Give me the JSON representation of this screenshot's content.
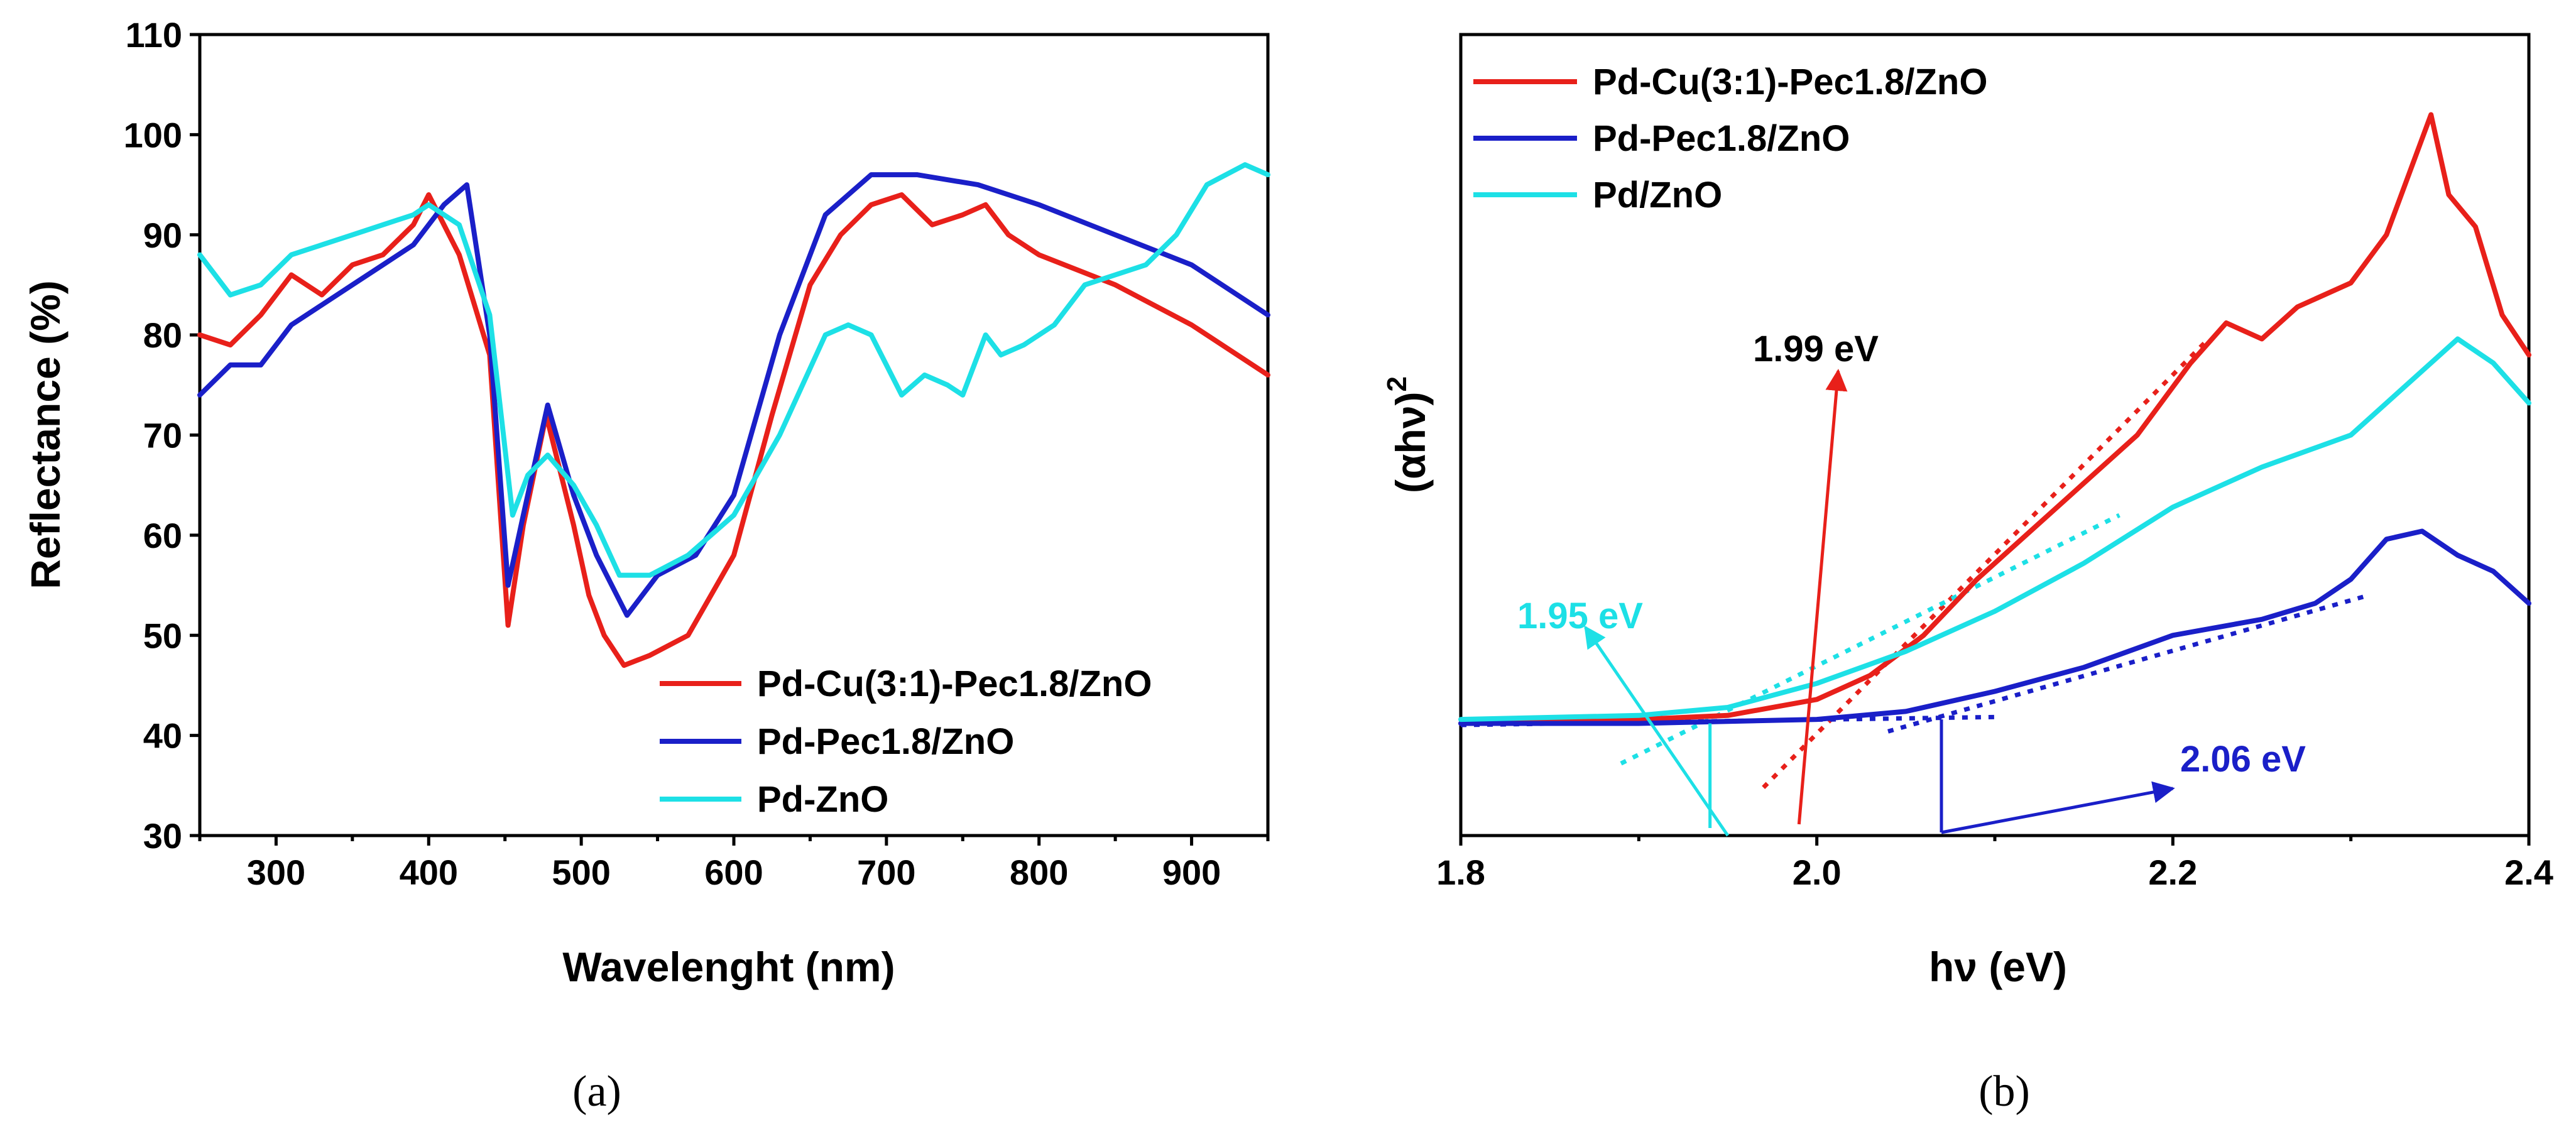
{
  "chart_data": [
    {
      "panel": "(a)",
      "type": "line",
      "title": "",
      "xlabel": "Wavelenght (nm)",
      "ylabel": "Reflectance (%)",
      "xlim": [
        250,
        950
      ],
      "ylim": [
        30,
        110
      ],
      "xticks": [
        300,
        400,
        500,
        600,
        700,
        800,
        900
      ],
      "yticks": [
        30,
        40,
        50,
        60,
        70,
        80,
        90,
        100,
        110
      ],
      "legend_position": "bottom-right",
      "series": [
        {
          "name": "Pd-Cu(3:1)-Pec1.8/ZnO",
          "color": "#e8201a",
          "x": [
            250,
            270,
            290,
            310,
            330,
            350,
            370,
            390,
            400,
            420,
            440,
            452,
            462,
            477,
            495,
            505,
            515,
            528,
            545,
            570,
            600,
            625,
            650,
            670,
            690,
            710,
            730,
            750,
            765,
            780,
            800,
            850,
            900,
            950
          ],
          "y": [
            80,
            79,
            82,
            86,
            84,
            87,
            88,
            91,
            94,
            88,
            78,
            51,
            61,
            72,
            61,
            54,
            50,
            47,
            48,
            50,
            58,
            72,
            85,
            90,
            93,
            94,
            91,
            92,
            93,
            90,
            88,
            85,
            81,
            76
          ]
        },
        {
          "name": "Pd-Pec1.8/ZnO",
          "color": "#1a1fc8",
          "x": [
            250,
            270,
            290,
            310,
            330,
            350,
            370,
            390,
            410,
            425,
            440,
            452,
            462,
            478,
            495,
            510,
            530,
            550,
            575,
            600,
            630,
            660,
            690,
            720,
            760,
            800,
            850,
            900,
            950
          ],
          "y": [
            74,
            77,
            77,
            81,
            83,
            85,
            87,
            89,
            93,
            95,
            80,
            55,
            62,
            73,
            64,
            58,
            52,
            56,
            58,
            64,
            80,
            92,
            96,
            96,
            95,
            93,
            90,
            87,
            82
          ]
        },
        {
          "name": "Pd-ZnO",
          "color": "#1de0e6",
          "x": [
            250,
            270,
            290,
            310,
            330,
            350,
            370,
            390,
            400,
            420,
            440,
            455,
            465,
            478,
            495,
            510,
            525,
            545,
            570,
            600,
            630,
            660,
            675,
            690,
            710,
            725,
            740,
            750,
            765,
            775,
            790,
            810,
            830,
            850,
            870,
            890,
            910,
            935,
            950
          ],
          "y": [
            88,
            84,
            85,
            88,
            89,
            90,
            91,
            92,
            93,
            91,
            82,
            62,
            66,
            68,
            65,
            61,
            56,
            56,
            58,
            62,
            70,
            80,
            81,
            80,
            74,
            76,
            75,
            74,
            80,
            78,
            79,
            81,
            85,
            86,
            87,
            90,
            95,
            97,
            96
          ]
        }
      ]
    },
    {
      "panel": "(b)",
      "type": "line",
      "title": "",
      "xlabel": "hν (eV)",
      "ylabel": "(αhν)",
      "ylabel_superscript": "2",
      "xlim": [
        1.8,
        2.4
      ],
      "ylim": [
        0,
        1
      ],
      "xticks": [
        "1.8",
        "2.0",
        "2.2",
        "2.4"
      ],
      "legend_position": "top-left",
      "series": [
        {
          "name": "Pd-Cu(3:1)-Pec1.8/ZnO ",
          "color": "#e8201a",
          "x": [
            1.8,
            1.9,
            1.95,
            2.0,
            2.03,
            2.06,
            2.09,
            2.12,
            2.15,
            2.18,
            2.21,
            2.23,
            2.25,
            2.27,
            2.3,
            2.32,
            2.345,
            2.355,
            2.37,
            2.385,
            2.4
          ],
          "y": [
            0.14,
            0.145,
            0.15,
            0.17,
            0.2,
            0.25,
            0.32,
            0.38,
            0.44,
            0.5,
            0.59,
            0.64,
            0.62,
            0.66,
            0.69,
            0.75,
            0.9,
            0.8,
            0.76,
            0.65,
            0.6
          ]
        },
        {
          "name": "Pd-Pec1.8/ZnO",
          "color": "#1a1fc8",
          "x": [
            1.8,
            1.9,
            2.0,
            2.05,
            2.1,
            2.15,
            2.2,
            2.25,
            2.28,
            2.3,
            2.32,
            2.34,
            2.36,
            2.38,
            2.4
          ],
          "y": [
            0.14,
            0.14,
            0.145,
            0.155,
            0.18,
            0.21,
            0.25,
            0.27,
            0.29,
            0.32,
            0.37,
            0.38,
            0.35,
            0.33,
            0.29
          ]
        },
        {
          "name": "Pd/ZnO",
          "color": "#1de0e6",
          "x": [
            1.8,
            1.9,
            1.95,
            2.0,
            2.05,
            2.1,
            2.15,
            2.2,
            2.25,
            2.3,
            2.33,
            2.36,
            2.38,
            2.4
          ],
          "y": [
            0.145,
            0.15,
            0.16,
            0.19,
            0.23,
            0.28,
            0.34,
            0.41,
            0.46,
            0.5,
            0.56,
            0.62,
            0.59,
            0.54
          ]
        }
      ],
      "annotations": [
        {
          "text": "1.99 eV",
          "color": "#000000",
          "target": 1.99
        },
        {
          "text": "1.95 eV",
          "color": "#1de0e6",
          "target": 1.94
        },
        {
          "text": "2.06 eV",
          "color": "#1a1fc8",
          "target": 2.07
        }
      ]
    }
  ]
}
